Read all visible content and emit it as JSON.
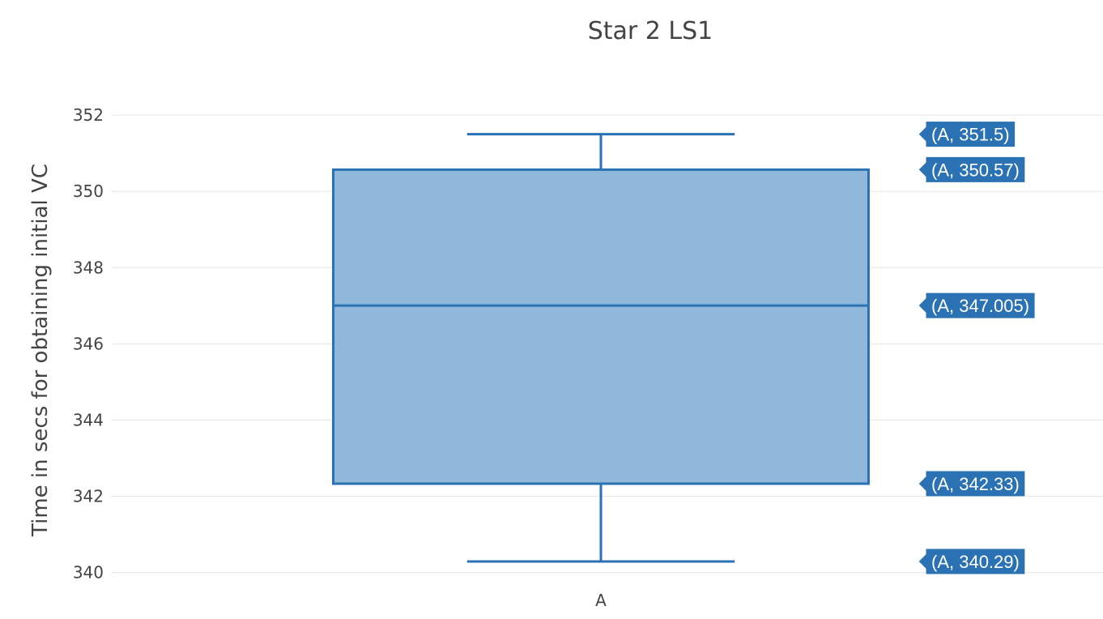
{
  "chart_data": {
    "type": "box",
    "title": "Star 2 LS1",
    "xlabel": "",
    "ylabel": "Time in secs for obtaining initial VC",
    "categories": [
      "A"
    ],
    "series": [
      {
        "category": "A",
        "min": 340.29,
        "q1": 342.33,
        "median": 347.005,
        "q3": 350.57,
        "max": 351.5
      }
    ],
    "ylim": [
      339.8,
      352.3
    ],
    "yticks": [
      340,
      342,
      344,
      346,
      348,
      350,
      352
    ],
    "hover_labels": [
      "(A, 351.5)",
      "(A, 350.57)",
      "(A, 347.005)",
      "(A, 342.33)",
      "(A, 340.29)"
    ],
    "grid": true,
    "legend": "none",
    "colors": {
      "line": "#2a72b4",
      "fill": "#8fb8da",
      "grid": "#e5e5e5",
      "text": "#444444",
      "hover_bg": "#2a72b4"
    }
  }
}
